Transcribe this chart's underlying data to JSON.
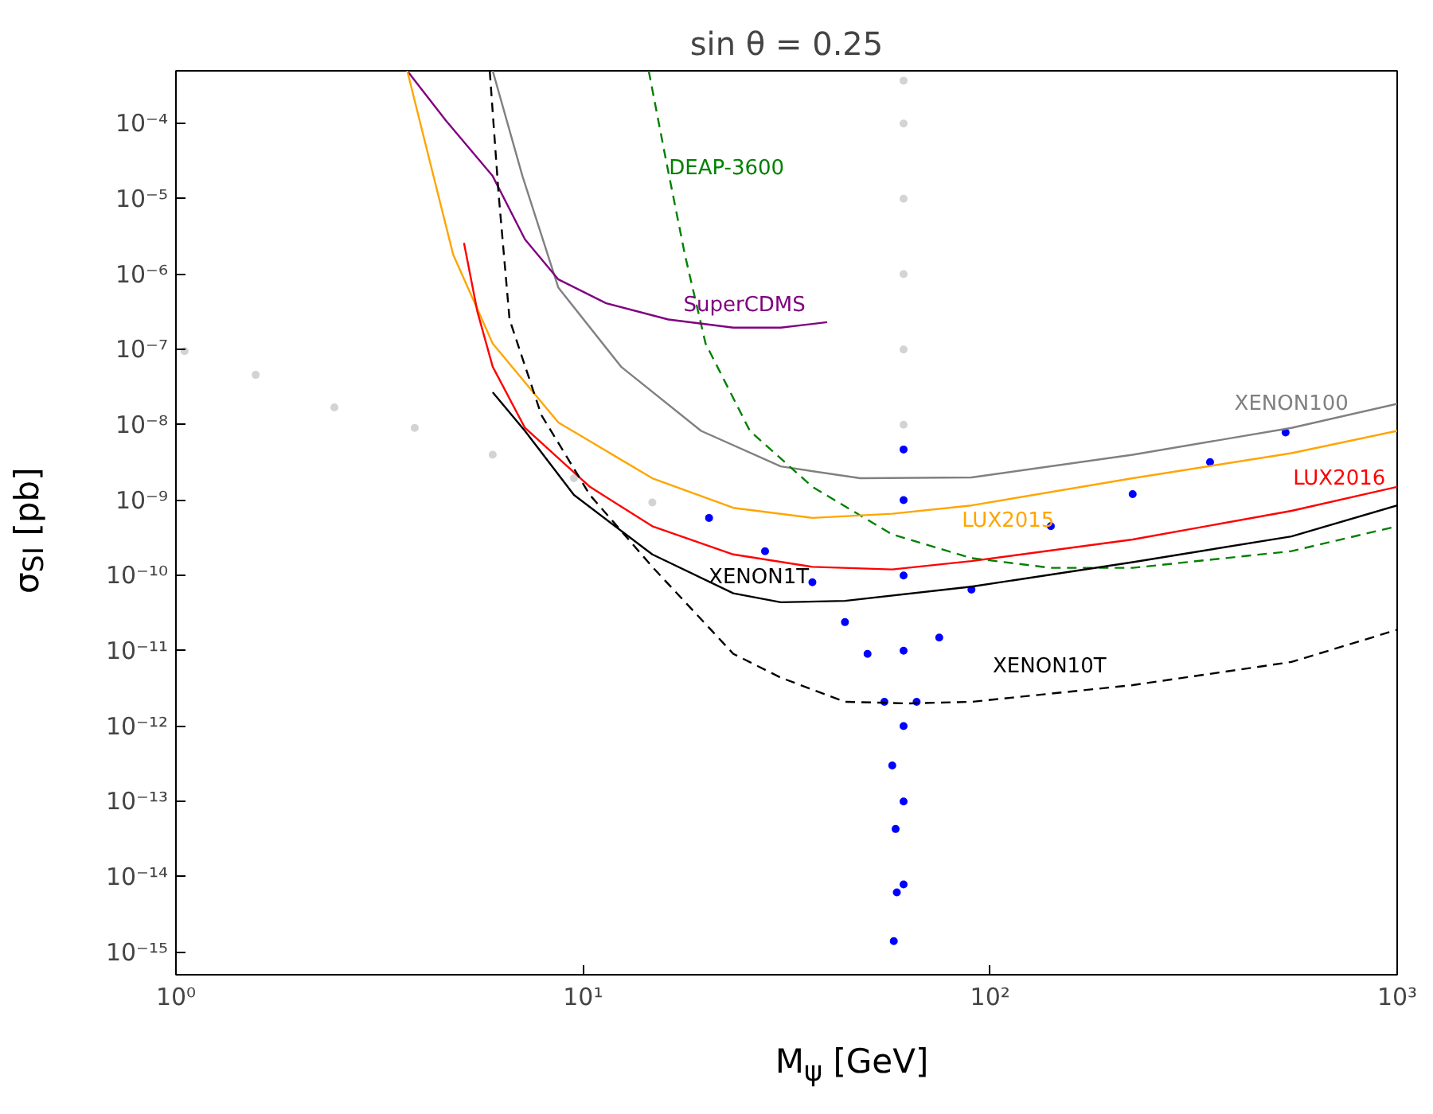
{
  "chart_data": {
    "type": "line",
    "title": "sin θ = 0.25",
    "xlabel": "M$_{ψ}$ [GeV]",
    "ylabel": "σ$_{SI}$ [pb]",
    "log": "xy",
    "grid": false,
    "legend": false,
    "xlim": [
      1,
      1000
    ],
    "ylim": [
      5e-16,
      0.0005
    ],
    "xticks": [
      {
        "value": 1,
        "label": "10⁰"
      },
      {
        "value": 10,
        "label": "10¹"
      },
      {
        "value": 100,
        "label": "10²"
      },
      {
        "value": 1000,
        "label": "10³"
      }
    ],
    "yticks": [
      {
        "value": 1e-15,
        "label": "10⁻¹⁵"
      },
      {
        "value": 1e-14,
        "label": "10⁻¹⁴"
      },
      {
        "value": 1e-13,
        "label": "10⁻¹³"
      },
      {
        "value": 1e-12,
        "label": "10⁻¹²"
      },
      {
        "value": 1e-11,
        "label": "10⁻¹¹"
      },
      {
        "value": 1e-10,
        "label": "10⁻¹⁰"
      },
      {
        "value": 1e-09,
        "label": "10⁻⁹"
      },
      {
        "value": 1e-08,
        "label": "10⁻⁸"
      },
      {
        "value": 1e-07,
        "label": "10⁻⁷"
      },
      {
        "value": 1e-06,
        "label": "10⁻⁶"
      },
      {
        "value": 1e-05,
        "label": "10⁻⁵"
      },
      {
        "value": 0.0001,
        "label": "10⁻⁴"
      }
    ],
    "series": [
      {
        "type": "scatter",
        "marker": "circle",
        "color": "#d3d3d3",
        "x": [
          1.05,
          1.57,
          2.45,
          3.86,
          6.0,
          9.5,
          14.8,
          20.4,
          61.3,
          61.3,
          61.3,
          61.3,
          61.3,
          61.3
        ],
        "values": [
          9.5e-08,
          4.6e-08,
          1.7e-08,
          9.1e-09,
          4e-09,
          1.95e-09,
          9.3e-10,
          null,
          0.00037,
          0.0001,
          1e-05,
          1e-06,
          1e-07,
          1e-08
        ]
      },
      {
        "type": "scatter",
        "marker": "circle",
        "color": "#0000ff",
        "x": [
          20.4,
          28,
          36.6,
          44,
          50,
          55,
          57.5,
          58.6,
          59,
          58,
          61.3,
          61.3,
          61.3,
          61.3,
          61.3,
          61.3,
          61.3,
          66,
          75,
          90,
          141,
          224,
          347,
          532
        ],
        "values": [
          5.8e-10,
          2.1e-10,
          8.1e-11,
          2.4e-11,
          9.1e-12,
          2.1e-12,
          3e-13,
          4.3e-14,
          6.2e-15,
          1.4e-15,
          4.7e-09,
          1e-09,
          1e-10,
          1e-11,
          1e-12,
          1e-13,
          7.9e-15,
          2.1e-12,
          1.5e-11,
          6.5e-11,
          4.5e-10,
          1.2e-09,
          3.2e-09,
          7.9e-09
        ]
      },
      {
        "name": "XENON100",
        "line_style": "solid",
        "color": "#808080",
        "x": [
          6.0,
          7.1,
          8.7,
          12.4,
          19.5,
          30.6,
          48,
          90,
          224,
          550,
          1000
        ],
        "values": [
          0.0005,
          2e-05,
          6.6e-07,
          5.9e-08,
          8.3e-09,
          2.8e-09,
          1.95e-09,
          2e-09,
          4e-09,
          9.1e-09,
          1.9e-08
        ]
      },
      {
        "name": "DEAP-3600",
        "line_style": "dashed",
        "color": "#008000",
        "x": [
          14.5,
          16.0,
          17.8,
          20,
          25.7,
          36.6,
          57.5,
          90,
          141,
          224,
          550,
          1000
        ],
        "values": [
          0.0005,
          3.2e-05,
          1.8e-06,
          1.2e-07,
          8.3e-09,
          1.5e-09,
          3.5e-10,
          1.7e-10,
          1.26e-10,
          1.26e-10,
          2.1e-10,
          4.5e-10
        ]
      },
      {
        "name": "SuperCDMS",
        "line_style": "solid",
        "color": "#800080",
        "x": [
          3.7,
          4.6,
          6.0,
          7.2,
          8.7,
          11.4,
          16.2,
          23.4,
          30.6,
          39.8
        ],
        "values": [
          0.0005,
          0.00011,
          2e-05,
          2.9e-06,
          8.5e-07,
          4.1e-07,
          2.5e-07,
          1.95e-07,
          1.95e-07,
          2.3e-07
        ]
      },
      {
        "name": "LUX2015",
        "line_style": "solid",
        "color": "#ffa500",
        "x": [
          3.7,
          4.2,
          4.8,
          6.0,
          8.7,
          14.8,
          23.4,
          36.6,
          57.5,
          90,
          224,
          550,
          1000
        ],
        "values": [
          0.0005,
          3.2e-05,
          1.8e-06,
          1.2e-07,
          1.07e-08,
          1.95e-09,
          7.9e-10,
          5.8e-10,
          6.6e-10,
          8.5e-10,
          1.95e-09,
          4.2e-09,
          8.3e-09
        ]
      },
      {
        "name": "LUX2016",
        "line_style": "solid",
        "color": "#ff0000",
        "x": [
          5.1,
          5.5,
          6.0,
          7.2,
          10.4,
          14.8,
          23.4,
          36.6,
          57.5,
          90,
          224,
          550,
          1000
        ],
        "values": [
          2.6e-06,
          3.2e-07,
          5.9e-08,
          9.1e-09,
          1.5e-09,
          4.5e-10,
          1.9e-10,
          1.3e-10,
          1.2e-10,
          1.55e-10,
          3e-10,
          7.2e-10,
          1.5e-09
        ]
      },
      {
        "name": "XENON1T",
        "line_style": "solid",
        "color": "#000000",
        "x": [
          6.0,
          7.2,
          9.5,
          14.8,
          23.4,
          30.6,
          44,
          90,
          224,
          550,
          1000
        ],
        "values": [
          2.7e-08,
          8.3e-09,
          1.17e-09,
          1.9e-10,
          5.8e-11,
          4.4e-11,
          4.6e-11,
          7.1e-11,
          1.5e-10,
          3.3e-10,
          8.5e-10
        ]
      },
      {
        "name": "XENON10T",
        "line_style": "dashed",
        "color": "#000000",
        "x": [
          5.9,
          6.2,
          6.6,
          7.9,
          10.4,
          14.8,
          23.4,
          30.6,
          44,
          63,
          90,
          224,
          550,
          1000
        ],
        "values": [
          0.0005,
          1.2e-05,
          2.5e-07,
          1.35e-08,
          1.17e-09,
          1.3e-10,
          9.1e-12,
          4.4e-12,
          2.1e-12,
          2e-12,
          2.1e-12,
          3.5e-12,
          7.1e-12,
          1.9e-11
        ]
      }
    ]
  }
}
